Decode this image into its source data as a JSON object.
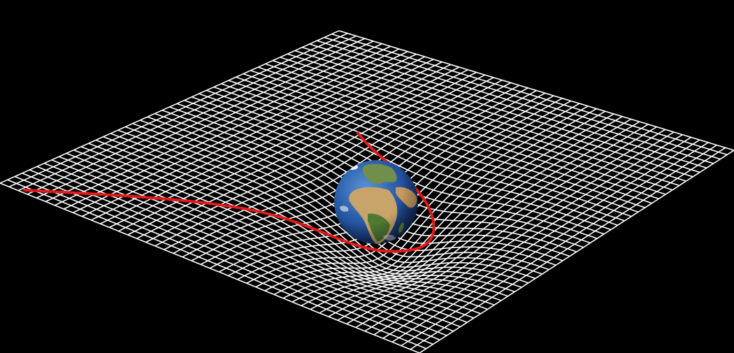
{
  "scene": {
    "subject": "spacetime-curvature-illustration",
    "colors": {
      "background": "#000000",
      "grid": "#ffffff",
      "trajectory": "#e01a1a",
      "ocean_dark": "#0d2f6e",
      "ocean_light": "#3f7fc9",
      "land_sand": "#c9a46a",
      "land_green": "#4f7a34",
      "ice": "#f2f4f7"
    },
    "grid": {
      "divisions": 46
    },
    "icons": {
      "planet": "earth-icon"
    }
  }
}
